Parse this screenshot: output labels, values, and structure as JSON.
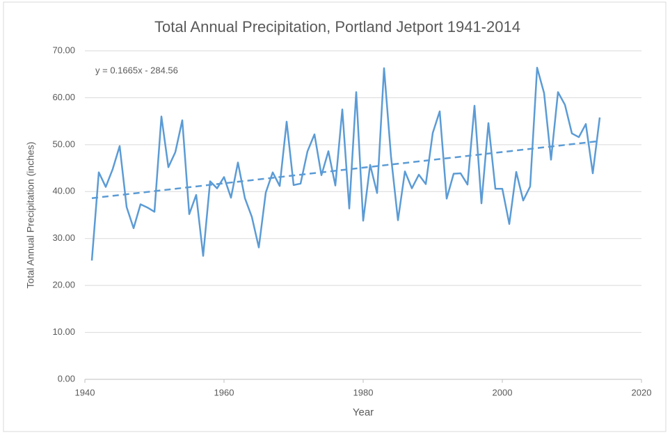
{
  "chart_data": {
    "type": "line",
    "title": "Total Annual Precipitation, Portland Jetport 1941-2014",
    "x_label": "Year",
    "y_label": "Total Annual Precipitation (inches)",
    "annotation": "y = 0.1665x - 284.56",
    "x": [
      1941,
      1942,
      1943,
      1944,
      1945,
      1946,
      1947,
      1948,
      1949,
      1950,
      1951,
      1952,
      1953,
      1954,
      1955,
      1956,
      1957,
      1958,
      1959,
      1960,
      1961,
      1962,
      1963,
      1964,
      1965,
      1966,
      1967,
      1968,
      1969,
      1970,
      1971,
      1972,
      1973,
      1974,
      1975,
      1976,
      1977,
      1978,
      1979,
      1980,
      1981,
      1982,
      1983,
      1984,
      1985,
      1986,
      1987,
      1988,
      1989,
      1990,
      1991,
      1992,
      1993,
      1994,
      1995,
      1996,
      1997,
      1998,
      1999,
      2000,
      2001,
      2002,
      2003,
      2004,
      2005,
      2006,
      2007,
      2008,
      2009,
      2010,
      2011,
      2012,
      2013,
      2014
    ],
    "series": [
      {
        "color": "#5b9bd5",
        "values": [
          25.3,
          44.1,
          41.0,
          44.8,
          49.7,
          36.7,
          32.2,
          37.3,
          36.6,
          35.7,
          56.0,
          45.2,
          48.4,
          55.2,
          35.2,
          39.3,
          26.3,
          42.2,
          40.7,
          43.1,
          38.7,
          46.2,
          38.6,
          34.6,
          28.1,
          39.8,
          44.1,
          41.2,
          54.9,
          41.4,
          41.7,
          48.6,
          52.2,
          43.5,
          48.6,
          41.3,
          57.5,
          36.4,
          61.2,
          33.8,
          45.7,
          39.7,
          66.3,
          47.5,
          33.9,
          44.3,
          40.7,
          43.6,
          41.6,
          52.5,
          57.1,
          38.5,
          43.8,
          43.9,
          41.5,
          58.3,
          37.5,
          54.6,
          40.6,
          40.6,
          33.1,
          44.2,
          38.1,
          41.1,
          66.4,
          61.0,
          46.8,
          61.2,
          58.5,
          52.4,
          51.6,
          54.4,
          43.9,
          55.8
        ]
      }
    ],
    "trendline": {
      "color": "#5b9bd5",
      "dashed": true,
      "x": [
        1941,
        2014
      ],
      "values": [
        38.6,
        50.77
      ]
    },
    "xlim": [
      1940,
      2020
    ],
    "xticks": [
      1940,
      1960,
      1980,
      2000,
      2020
    ],
    "ylim": [
      0,
      70
    ],
    "yticks": [
      {
        "value": 0,
        "label": "0.00"
      },
      {
        "value": 10,
        "label": "10.00"
      },
      {
        "value": 20,
        "label": "20.00"
      },
      {
        "value": 30,
        "label": "30.00"
      },
      {
        "value": 40,
        "label": "40.00"
      },
      {
        "value": 50,
        "label": "50.00"
      },
      {
        "value": 60,
        "label": "60.00"
      },
      {
        "value": 70,
        "label": "70.00"
      }
    ],
    "grid": true
  }
}
